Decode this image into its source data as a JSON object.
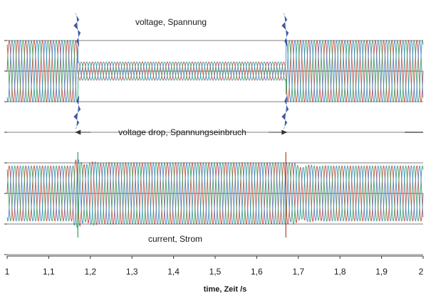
{
  "chart_data": {
    "type": "line",
    "title": "",
    "xlabel": "time, Zeit /s",
    "ylabel": "",
    "xlim": [
      1.0,
      2.0
    ],
    "x_ticks": [
      "1",
      "1,1",
      "1,2",
      "1,3",
      "1,4",
      "1,5",
      "1,6",
      "1,7",
      "1,8",
      "1,9",
      "2"
    ],
    "grid": "horizontal gridlines only",
    "colors": {
      "phase_a": "#c0392b",
      "phase_b": "#2e9e5b",
      "phase_c": "#3a7ec8",
      "gridline": "#555555",
      "transient": "#1f3d99"
    },
    "panels": [
      {
        "name": "voltage",
        "label": "voltage, Spannung",
        "phases": 3,
        "segments": [
          {
            "from": 1.0,
            "to": 1.17,
            "relative_amplitude": 1.0
          },
          {
            "from": 1.17,
            "to": 1.67,
            "relative_amplitude": 0.3
          },
          {
            "from": 1.67,
            "to": 2.0,
            "relative_amplitude": 1.0
          }
        ]
      },
      {
        "name": "current",
        "label": "current, Strom",
        "phases": 3,
        "segments": [
          {
            "from": 1.0,
            "to": 1.16,
            "relative_amplitude": 0.9
          },
          {
            "from": 1.16,
            "to": 1.68,
            "relative_amplitude": 1.0
          },
          {
            "from": 1.68,
            "to": 2.0,
            "relative_amplitude": 0.9
          }
        ]
      }
    ],
    "annotations": [
      {
        "text": "voltage drop, Spannungseinbruch",
        "from": 1.17,
        "to": 1.67
      }
    ]
  }
}
